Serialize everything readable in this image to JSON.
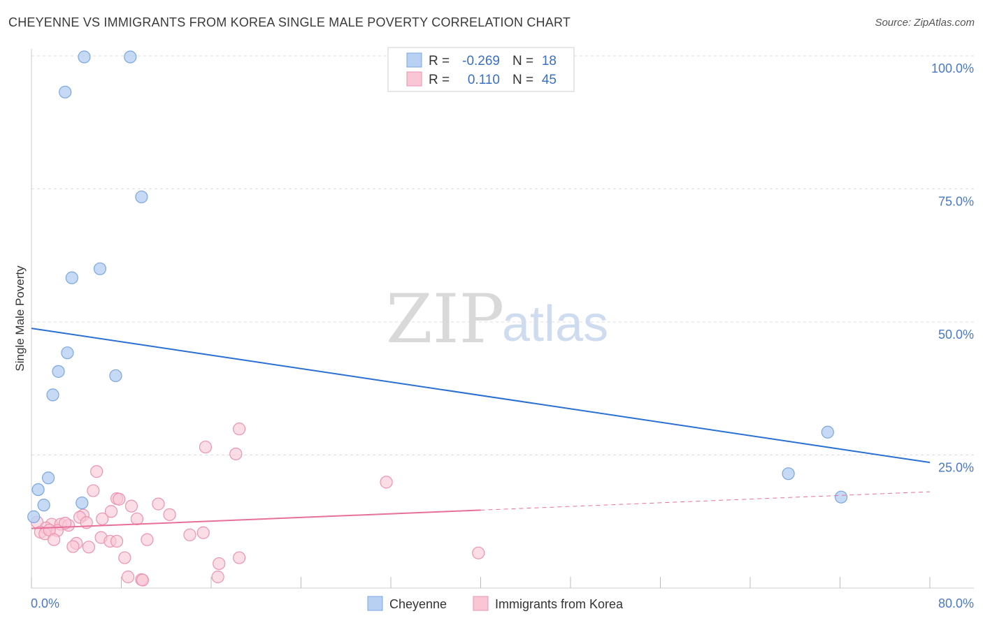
{
  "title": "CHEYENNE VS IMMIGRANTS FROM KOREA SINGLE MALE POVERTY CORRELATION CHART",
  "source": "Source: ZipAtlas.com",
  "watermark": {
    "zip": "ZIP",
    "atlas": "atlas"
  },
  "legend": {
    "r_label": "R =",
    "n_label": "N =",
    "rows": [
      {
        "r": "-0.269",
        "n": "18"
      },
      {
        "r": "0.110",
        "n": "45"
      }
    ]
  },
  "colors": {
    "cheyenne_fill": "#b8d1f3",
    "cheyenne_stroke": "#7aa6e0",
    "cheyenne_line": "#2a6fd4",
    "korea_fill": "#f8c6d5",
    "korea_stroke": "#ec93b0",
    "korea_line": "#e8709a",
    "grid": "#dddddd",
    "tick_text": "#4a78c8"
  },
  "chart_data": {
    "type": "scatter",
    "title": "CHEYENNE VS IMMIGRANTS FROM KOREA SINGLE MALE POVERTY CORRELATION CHART",
    "xlabel": "",
    "ylabel": "Single Male Poverty",
    "xlim": [
      0,
      80
    ],
    "ylim": [
      0,
      100
    ],
    "x_tick_labels": [
      "0.0%",
      "80.0%"
    ],
    "y_ticks": [
      25,
      50,
      75,
      100
    ],
    "y_tick_labels": [
      "25.0%",
      "50.0%",
      "75.0%",
      "100.0%"
    ],
    "legend_position": "top-center",
    "series": [
      {
        "name": "Cheyenne",
        "r": -0.269,
        "n": 18,
        "trend": {
          "x": [
            0,
            80
          ],
          "y": [
            48.8,
            23.6
          ],
          "dashed_from": null
        },
        "points": [
          {
            "x": 4.7,
            "y": 99.8
          },
          {
            "x": 8.8,
            "y": 99.8
          },
          {
            "x": 3.0,
            "y": 93.2
          },
          {
            "x": 9.8,
            "y": 73.5
          },
          {
            "x": 3.6,
            "y": 58.3
          },
          {
            "x": 6.1,
            "y": 60.0
          },
          {
            "x": 3.2,
            "y": 44.2
          },
          {
            "x": 2.4,
            "y": 40.7
          },
          {
            "x": 7.5,
            "y": 39.9
          },
          {
            "x": 1.9,
            "y": 36.3
          },
          {
            "x": 1.5,
            "y": 20.7
          },
          {
            "x": 0.6,
            "y": 18.5
          },
          {
            "x": 1.1,
            "y": 15.6
          },
          {
            "x": 4.5,
            "y": 16.0
          },
          {
            "x": 0.2,
            "y": 13.4
          },
          {
            "x": 70.9,
            "y": 29.3
          },
          {
            "x": 67.4,
            "y": 21.5
          },
          {
            "x": 72.1,
            "y": 17.1
          }
        ]
      },
      {
        "name": "Immigrants from Korea",
        "r": 0.11,
        "n": 45,
        "trend": {
          "x": [
            0,
            80
          ],
          "y": [
            11.2,
            18.1
          ],
          "dashed_from": 40
        },
        "points": [
          {
            "x": 18.5,
            "y": 29.9
          },
          {
            "x": 15.5,
            "y": 26.5
          },
          {
            "x": 18.2,
            "y": 25.2
          },
          {
            "x": 5.8,
            "y": 21.9
          },
          {
            "x": 31.6,
            "y": 19.9
          },
          {
            "x": 5.5,
            "y": 18.3
          },
          {
            "x": 7.6,
            "y": 16.8
          },
          {
            "x": 7.8,
            "y": 16.7
          },
          {
            "x": 8.9,
            "y": 15.4
          },
          {
            "x": 11.3,
            "y": 15.8
          },
          {
            "x": 7.1,
            "y": 14.4
          },
          {
            "x": 12.3,
            "y": 13.8
          },
          {
            "x": 4.6,
            "y": 13.7
          },
          {
            "x": 4.3,
            "y": 13.3
          },
          {
            "x": 6.3,
            "y": 13.0
          },
          {
            "x": 9.4,
            "y": 13.0
          },
          {
            "x": 0.5,
            "y": 12.4
          },
          {
            "x": 1.8,
            "y": 12.0
          },
          {
            "x": 2.6,
            "y": 12.0
          },
          {
            "x": 3.3,
            "y": 11.8
          },
          {
            "x": 3.0,
            "y": 12.2
          },
          {
            "x": 4.9,
            "y": 12.3
          },
          {
            "x": 1.3,
            "y": 11.3
          },
          {
            "x": 2.3,
            "y": 10.8
          },
          {
            "x": 0.8,
            "y": 10.5
          },
          {
            "x": 1.2,
            "y": 10.2
          },
          {
            "x": 1.6,
            "y": 10.9
          },
          {
            "x": 15.3,
            "y": 10.4
          },
          {
            "x": 14.1,
            "y": 10.0
          },
          {
            "x": 6.2,
            "y": 9.5
          },
          {
            "x": 2.0,
            "y": 9.1
          },
          {
            "x": 7.0,
            "y": 8.8
          },
          {
            "x": 7.6,
            "y": 8.8
          },
          {
            "x": 10.3,
            "y": 9.1
          },
          {
            "x": 4.0,
            "y": 8.4
          },
          {
            "x": 3.7,
            "y": 7.8
          },
          {
            "x": 5.1,
            "y": 7.7
          },
          {
            "x": 39.8,
            "y": 6.6
          },
          {
            "x": 8.3,
            "y": 5.7
          },
          {
            "x": 18.5,
            "y": 5.7
          },
          {
            "x": 16.7,
            "y": 4.6
          },
          {
            "x": 8.6,
            "y": 2.1
          },
          {
            "x": 9.8,
            "y": 1.6
          },
          {
            "x": 9.9,
            "y": 1.5
          },
          {
            "x": 16.6,
            "y": 2.1
          }
        ]
      }
    ]
  },
  "bottom_legend": [
    "Cheyenne",
    "Immigrants from Korea"
  ]
}
